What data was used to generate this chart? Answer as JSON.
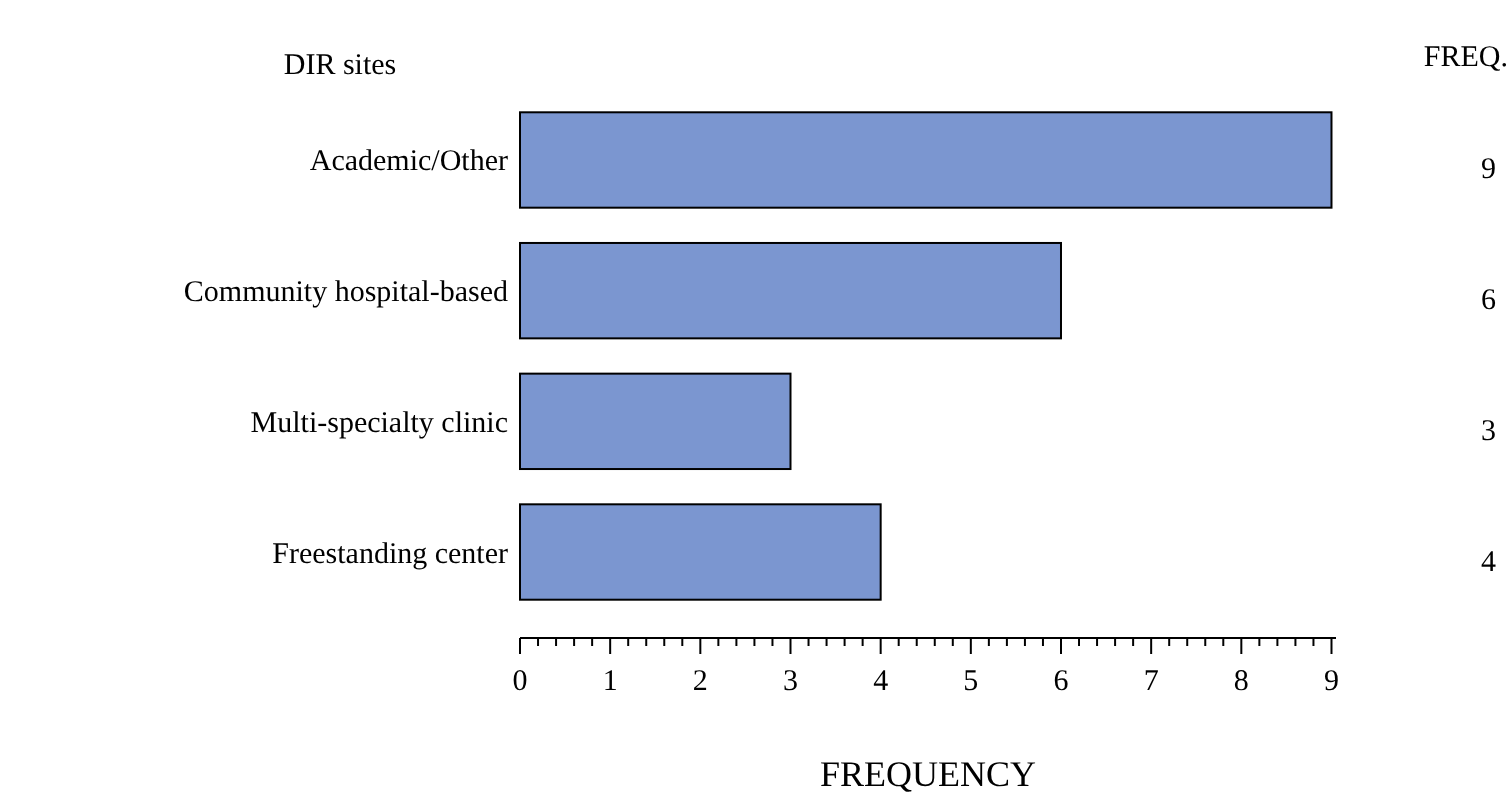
{
  "chart_data": {
    "type": "bar",
    "orientation": "horizontal",
    "ylabel": "DIR sites",
    "xlabel": "FREQUENCY",
    "annotations": [
      "FREQ."
    ],
    "categories": [
      "Academic/Other",
      "Community hospital-based",
      "Multi-specialty clinic",
      "Freestanding center"
    ],
    "values": [
      9,
      6,
      3,
      4
    ],
    "color": "#7b96d0",
    "data_labels": true,
    "xlim": [
      0,
      9.05
    ],
    "xticks": [
      0,
      {
        "value": 0.2,
        "label": null
      },
      {
        "value": 0.4,
        "label": null
      },
      {
        "value": 0.6,
        "label": null
      },
      {
        "value": 0.8,
        "label": null
      },
      1,
      {
        "value": 1.2,
        "label": null
      },
      {
        "value": 1.4,
        "label": null
      },
      {
        "value": 1.6,
        "label": null
      },
      {
        "value": 1.8,
        "label": null
      },
      2,
      {
        "value": 2.2,
        "label": null
      },
      {
        "value": 2.4,
        "label": null
      },
      {
        "value": 2.6,
        "label": null
      },
      {
        "value": 2.8,
        "label": null
      },
      3,
      {
        "value": 3.2,
        "label": null
      },
      {
        "value": 3.4,
        "label": null
      },
      {
        "value": 3.6,
        "label": null
      },
      {
        "value": 3.8,
        "label": null
      },
      4,
      {
        "value": 4.2,
        "label": null
      },
      {
        "value": 4.4,
        "label": null
      },
      {
        "value": 4.6,
        "label": null
      },
      {
        "value": 4.8,
        "label": null
      },
      5,
      {
        "value": 5.2,
        "label": null
      },
      {
        "value": 5.4,
        "label": null
      },
      {
        "value": 5.6,
        "label": null
      },
      {
        "value": 5.8,
        "label": null
      },
      6,
      {
        "value": 6.2,
        "label": null
      },
      {
        "value": 6.4,
        "label": null
      },
      {
        "value": 6.6,
        "label": null
      },
      {
        "value": 6.8,
        "label": null
      },
      7,
      {
        "value": 7.2,
        "label": null
      },
      {
        "value": 7.4,
        "label": null
      },
      {
        "value": 7.6,
        "label": null
      },
      {
        "value": 7.8,
        "label": null
      },
      8,
      {
        "value": 8.2,
        "label": null
      },
      {
        "value": 8.4,
        "label": null
      },
      {
        "value": 8.6,
        "label": null
      },
      {
        "value": 8.8,
        "label": null
      },
      9
    ],
    "grid": false
  }
}
